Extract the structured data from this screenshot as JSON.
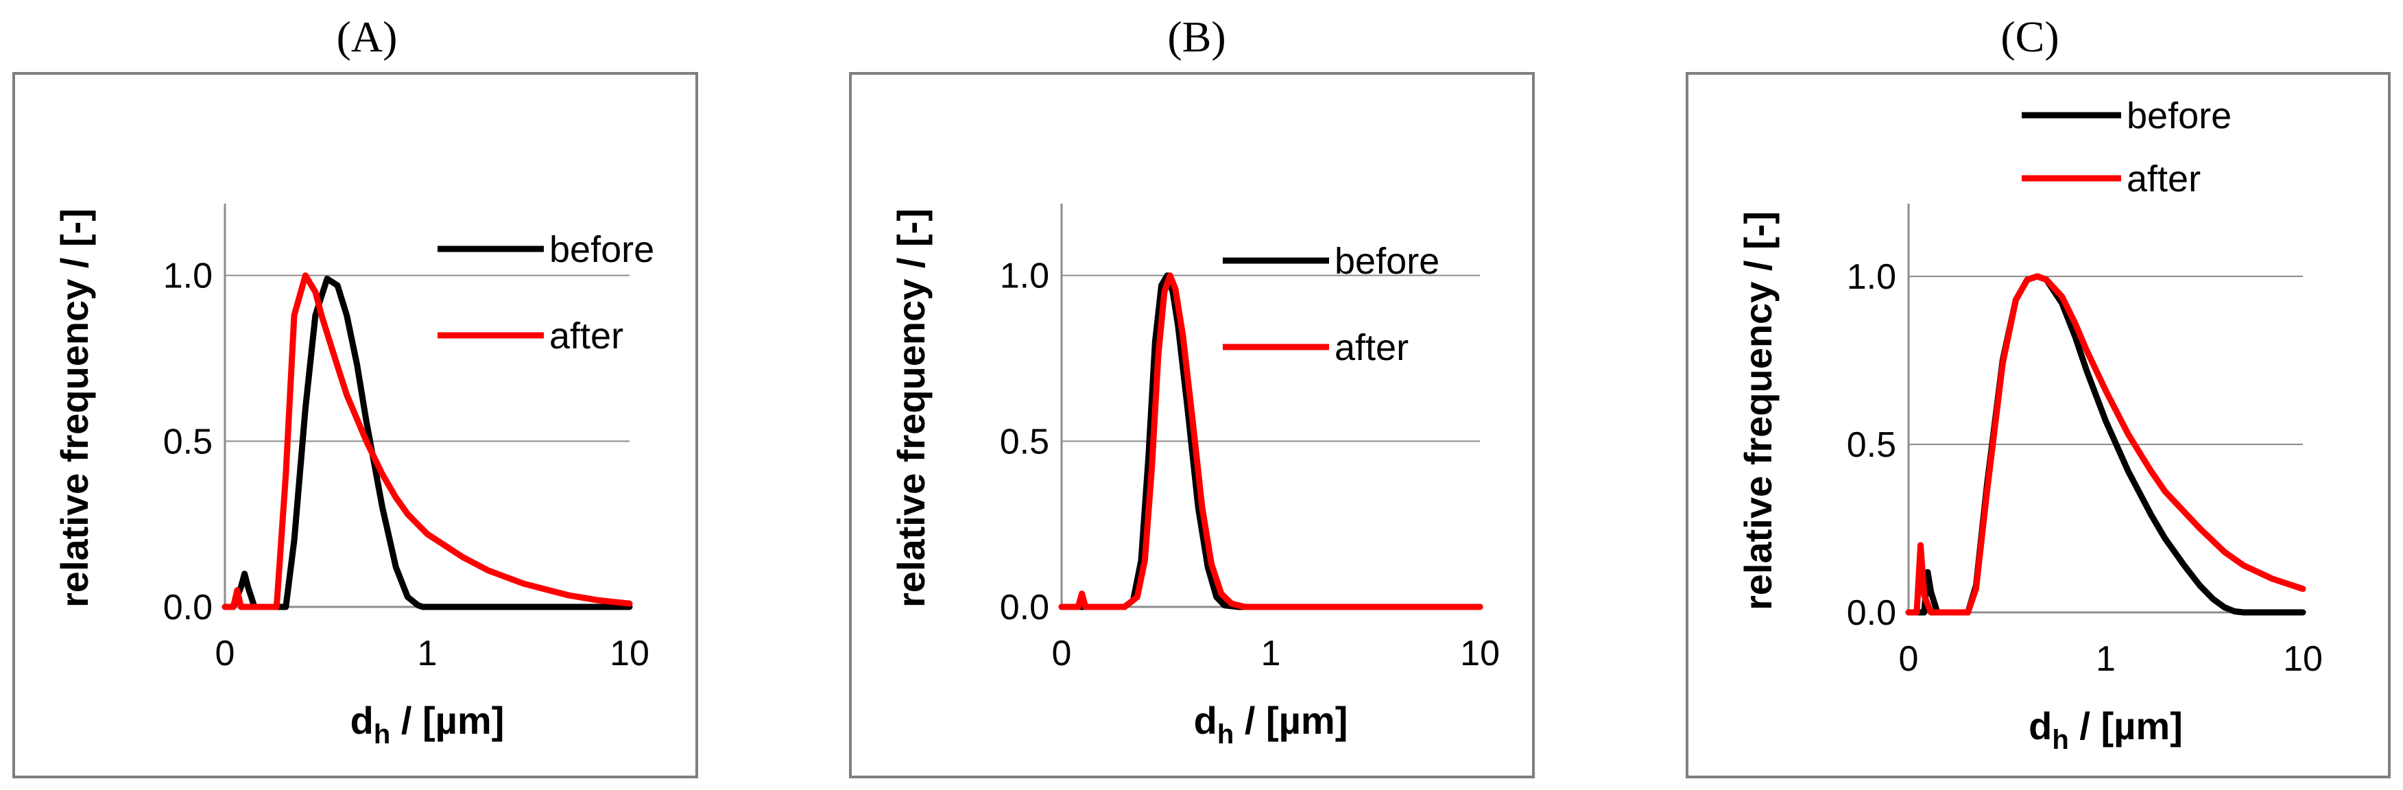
{
  "chart_data": [
    {
      "type": "line",
      "title": "(A)",
      "xlabel": "d",
      "xlabel_sub": "h",
      "xlabel_suffix": " / [µm]",
      "ylabel": "relative frequency / [-]",
      "xscale": "log",
      "xlim": [
        0.1,
        10
      ],
      "ylim": [
        0,
        1.2
      ],
      "x_ticks": [
        0.1,
        1,
        10
      ],
      "x_tick_labels": [
        "0",
        "1",
        "10"
      ],
      "y_ticks": [
        0,
        0.5,
        1.0
      ],
      "y_tick_labels": [
        "0.0",
        "0.5",
        "1.0"
      ],
      "grid": "horizontal",
      "legend_position": "upper-right",
      "series": [
        {
          "name": "before",
          "color": "#000000",
          "x": [
            0.1,
            0.11,
            0.12,
            0.125,
            0.13,
            0.14,
            0.15,
            0.16,
            0.2,
            0.22,
            0.25,
            0.28,
            0.32,
            0.36,
            0.4,
            0.45,
            0.5,
            0.6,
            0.7,
            0.8,
            0.9,
            0.95,
            1.0,
            2.0,
            5.0,
            10.0
          ],
          "y": [
            0,
            0,
            0.06,
            0.1,
            0.06,
            0,
            0,
            0,
            0,
            0.2,
            0.6,
            0.88,
            0.99,
            0.97,
            0.88,
            0.73,
            0.56,
            0.3,
            0.12,
            0.03,
            0.005,
            0,
            0,
            0,
            0,
            0
          ]
        },
        {
          "name": "after",
          "color": "#ff0000",
          "x": [
            0.1,
            0.11,
            0.115,
            0.12,
            0.13,
            0.15,
            0.18,
            0.2,
            0.22,
            0.25,
            0.28,
            0.3,
            0.35,
            0.4,
            0.5,
            0.6,
            0.7,
            0.8,
            1.0,
            1.5,
            2.0,
            3.0,
            5.0,
            7.0,
            10.0
          ],
          "y": [
            0,
            0,
            0.05,
            0,
            0,
            0,
            0,
            0.4,
            0.88,
            1.0,
            0.95,
            0.88,
            0.75,
            0.64,
            0.5,
            0.4,
            0.33,
            0.28,
            0.22,
            0.15,
            0.11,
            0.07,
            0.035,
            0.02,
            0.01
          ]
        }
      ]
    },
    {
      "type": "line",
      "title": "(B)",
      "xlabel": "d",
      "xlabel_sub": "h",
      "xlabel_suffix": " / [µm]",
      "ylabel": "relative frequency / [-]",
      "xscale": "log",
      "xlim": [
        0.1,
        10
      ],
      "ylim": [
        0,
        1.2
      ],
      "x_ticks": [
        0.1,
        1,
        10
      ],
      "x_tick_labels": [
        "0",
        "1",
        "10"
      ],
      "y_ticks": [
        0,
        0.5,
        1.0
      ],
      "y_tick_labels": [
        "0.0",
        "0.5",
        "1.0"
      ],
      "grid": "horizontal",
      "legend_position": "upper-right",
      "series": [
        {
          "name": "before",
          "color": "#000000",
          "x": [
            0.1,
            0.2,
            0.22,
            0.24,
            0.26,
            0.28,
            0.3,
            0.32,
            0.34,
            0.36,
            0.4,
            0.45,
            0.5,
            0.55,
            0.6,
            0.7,
            1.0,
            10.0
          ],
          "y": [
            0,
            0,
            0.02,
            0.14,
            0.45,
            0.8,
            0.97,
            1.0,
            0.95,
            0.85,
            0.6,
            0.3,
            0.12,
            0.03,
            0.005,
            0,
            0,
            0
          ]
        },
        {
          "name": "after",
          "color": "#ff0000",
          "x": [
            0.1,
            0.12,
            0.125,
            0.13,
            0.14,
            0.2,
            0.23,
            0.25,
            0.27,
            0.29,
            0.31,
            0.33,
            0.35,
            0.38,
            0.42,
            0.47,
            0.52,
            0.58,
            0.65,
            0.75,
            1.0,
            10.0
          ],
          "y": [
            0,
            0,
            0.04,
            0,
            0,
            0,
            0.03,
            0.14,
            0.42,
            0.76,
            0.95,
            1.0,
            0.96,
            0.82,
            0.58,
            0.3,
            0.13,
            0.04,
            0.01,
            0,
            0,
            0
          ]
        }
      ]
    },
    {
      "type": "line",
      "title": "(C)",
      "xlabel": "d",
      "xlabel_sub": "h",
      "xlabel_suffix": " / [µm]",
      "ylabel": "relative frequency / [-]",
      "xscale": "log",
      "xlim": [
        0.1,
        10
      ],
      "ylim": [
        0,
        1.2
      ],
      "x_ticks": [
        0.1,
        1,
        10
      ],
      "x_tick_labels": [
        "0",
        "1",
        "10"
      ],
      "y_ticks": [
        0,
        0.5,
        1.0
      ],
      "y_tick_labels": [
        "0.0",
        "0.5",
        "1.0"
      ],
      "grid": "horizontal",
      "legend_position": "top",
      "series": [
        {
          "name": "before",
          "color": "#000000",
          "x": [
            0.1,
            0.12,
            0.125,
            0.13,
            0.14,
            0.2,
            0.22,
            0.25,
            0.3,
            0.35,
            0.4,
            0.45,
            0.5,
            0.6,
            0.7,
            0.8,
            1.0,
            1.3,
            1.7,
            2.0,
            2.5,
            3.0,
            3.5,
            4.0,
            4.5,
            5.0,
            10.0
          ],
          "y": [
            0,
            0,
            0.12,
            0.06,
            0,
            0,
            0.08,
            0.38,
            0.75,
            0.93,
            0.99,
            1.0,
            0.99,
            0.92,
            0.82,
            0.72,
            0.57,
            0.42,
            0.29,
            0.22,
            0.14,
            0.08,
            0.04,
            0.015,
            0.003,
            0,
            0
          ]
        },
        {
          "name": "after",
          "color": "#ff0000",
          "x": [
            0.1,
            0.11,
            0.115,
            0.12,
            0.13,
            0.2,
            0.22,
            0.25,
            0.3,
            0.35,
            0.4,
            0.45,
            0.5,
            0.6,
            0.7,
            0.8,
            1.0,
            1.3,
            1.7,
            2.0,
            3.0,
            4.0,
            5.0,
            7.0,
            10.0
          ],
          "y": [
            0,
            0,
            0.2,
            0.05,
            0,
            0,
            0.07,
            0.36,
            0.74,
            0.93,
            0.99,
            1.0,
            0.99,
            0.94,
            0.86,
            0.78,
            0.66,
            0.53,
            0.42,
            0.36,
            0.25,
            0.18,
            0.14,
            0.1,
            0.07
          ]
        }
      ]
    }
  ]
}
